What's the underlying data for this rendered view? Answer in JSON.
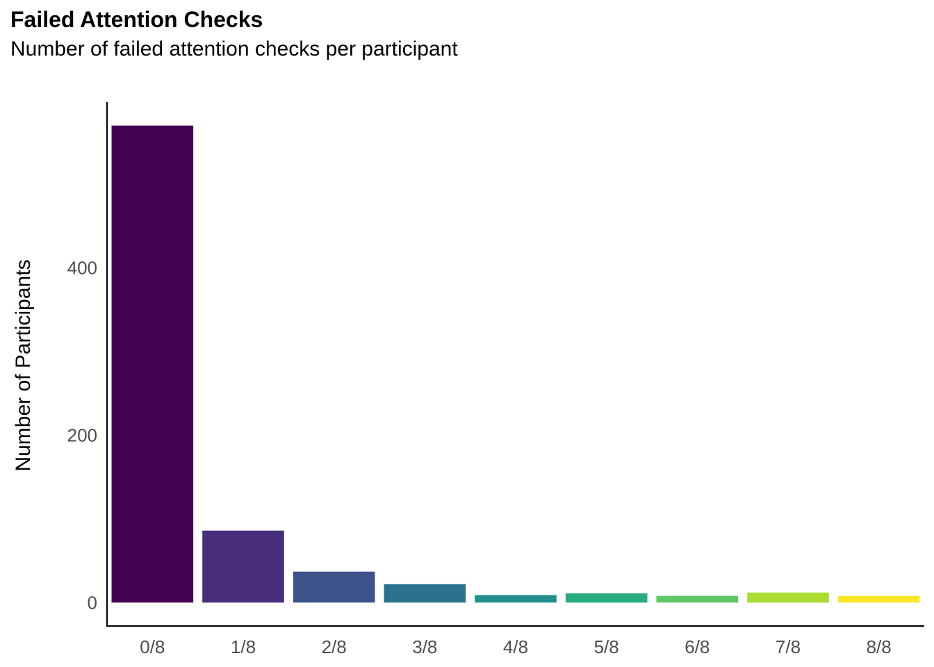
{
  "chart_data": {
    "type": "bar",
    "title": "Failed Attention Checks",
    "subtitle": "Number of failed attention checks per participant",
    "xlabel": "",
    "ylabel": "Number of Participants",
    "categories": [
      "0/8",
      "1/8",
      "2/8",
      "3/8",
      "4/8",
      "5/8",
      "6/8",
      "7/8",
      "8/8"
    ],
    "values": [
      570,
      86,
      37,
      22,
      9,
      11,
      8,
      12,
      8
    ],
    "colors": [
      "#440154",
      "#472D7B",
      "#3B528B",
      "#2C728E",
      "#21908C",
      "#27AD81",
      "#5DC863",
      "#AADC32",
      "#FDE725"
    ],
    "yticks": [
      0,
      200,
      400
    ],
    "ylim": [
      -28,
      598
    ],
    "grid": false,
    "legend": "none"
  }
}
